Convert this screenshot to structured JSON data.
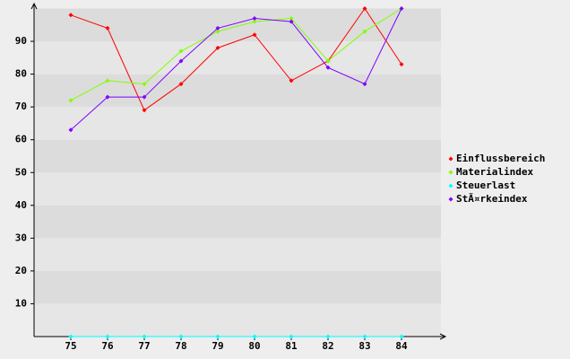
{
  "chart_data": {
    "type": "line",
    "categories": [
      "75",
      "76",
      "77",
      "78",
      "79",
      "80",
      "81",
      "82",
      "83",
      "84"
    ],
    "series": [
      {
        "name": "Einflussbereich",
        "color": "#ff0000",
        "values": [
          98,
          94,
          69,
          77,
          88,
          92,
          78,
          84,
          100,
          83
        ]
      },
      {
        "name": "Materialindex",
        "color": "#80ff00",
        "values": [
          72,
          78,
          77,
          87,
          93,
          96,
          97,
          84,
          93,
          100
        ]
      },
      {
        "name": "Steuerlast",
        "color": "#00ffff",
        "values": [
          0,
          0,
          0,
          0,
          0,
          0,
          0,
          0,
          0,
          0
        ]
      },
      {
        "name": "StÃ¤rkeindex",
        "color": "#8000ff",
        "values": [
          63,
          73,
          73,
          84,
          94,
          97,
          96,
          82,
          77,
          100
        ]
      }
    ],
    "ylim": [
      0,
      100
    ],
    "yticks": [
      10,
      20,
      30,
      40,
      50,
      60,
      70,
      80,
      90
    ],
    "grid": true,
    "legend": "right"
  }
}
